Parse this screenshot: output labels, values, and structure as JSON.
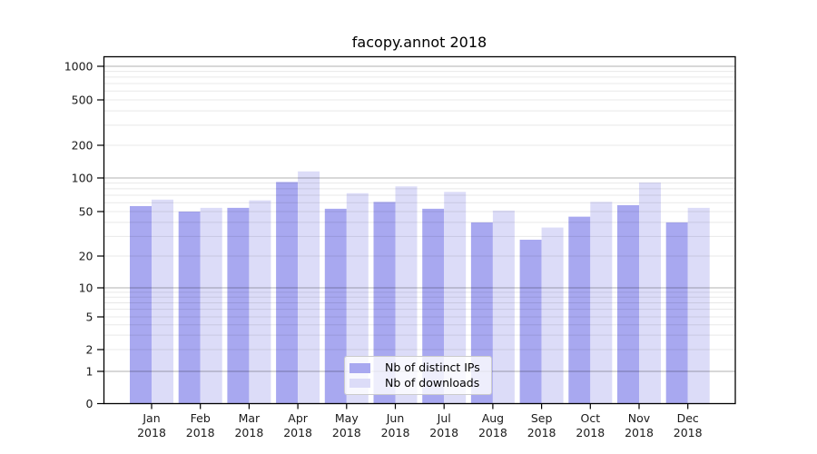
{
  "chart_data": {
    "type": "bar",
    "title": "facopy.annot 2018",
    "categories": [
      [
        "Jan",
        "2018"
      ],
      [
        "Feb",
        "2018"
      ],
      [
        "Mar",
        "2018"
      ],
      [
        "Apr",
        "2018"
      ],
      [
        "May",
        "2018"
      ],
      [
        "Jun",
        "2018"
      ],
      [
        "Jul",
        "2018"
      ],
      [
        "Aug",
        "2018"
      ],
      [
        "Sep",
        "2018"
      ],
      [
        "Oct",
        "2018"
      ],
      [
        "Nov",
        "2018"
      ],
      [
        "Dec",
        "2018"
      ]
    ],
    "series": [
      {
        "name": "Nb of distinct IPs",
        "color": "#a8a8f0",
        "values": [
          56,
          50,
          54,
          92,
          53,
          61,
          53,
          40,
          28,
          45,
          57,
          40
        ]
      },
      {
        "name": "Nb of downloads",
        "color": "#dcdcf8",
        "values": [
          64,
          54,
          63,
          115,
          73,
          84,
          75,
          51,
          36,
          61,
          91,
          54
        ]
      }
    ],
    "yticks": [
      0,
      1,
      2,
      5,
      10,
      20,
      50,
      100,
      200,
      500,
      1000
    ],
    "yscale": "log-like",
    "ylim": [
      0,
      1200
    ],
    "grid": "horizontal major+minor, drawn over bars",
    "legend": {
      "position": "lower-center"
    }
  }
}
